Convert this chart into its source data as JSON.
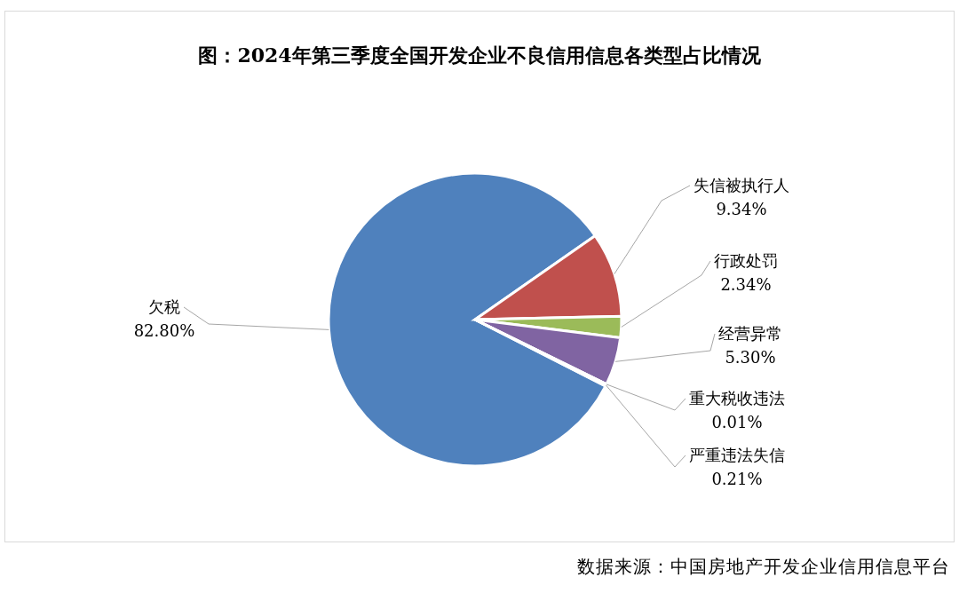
{
  "chart_data": {
    "type": "pie",
    "title": "图：2024年第三季度全国开发企业不良信用信息各类型占比情况",
    "categories": [
      "欠税",
      "失信被执行人",
      "行政处罚",
      "经营异常",
      "重大税收违法",
      "严重违法失信"
    ],
    "values": [
      82.8,
      9.34,
      2.34,
      5.3,
      0.01,
      0.21
    ],
    "value_labels": [
      "82.80%",
      "9.34%",
      "2.34%",
      "5.30%",
      "0.01%",
      "0.21%"
    ],
    "colors": [
      "#4f81bd",
      "#c0504d",
      "#9bbb59",
      "#8064a2",
      "#4bacc6",
      "#f79646"
    ],
    "legend": false,
    "annotations": [
      "数据来源：中国房地产开发企业信用信息平台"
    ]
  }
}
